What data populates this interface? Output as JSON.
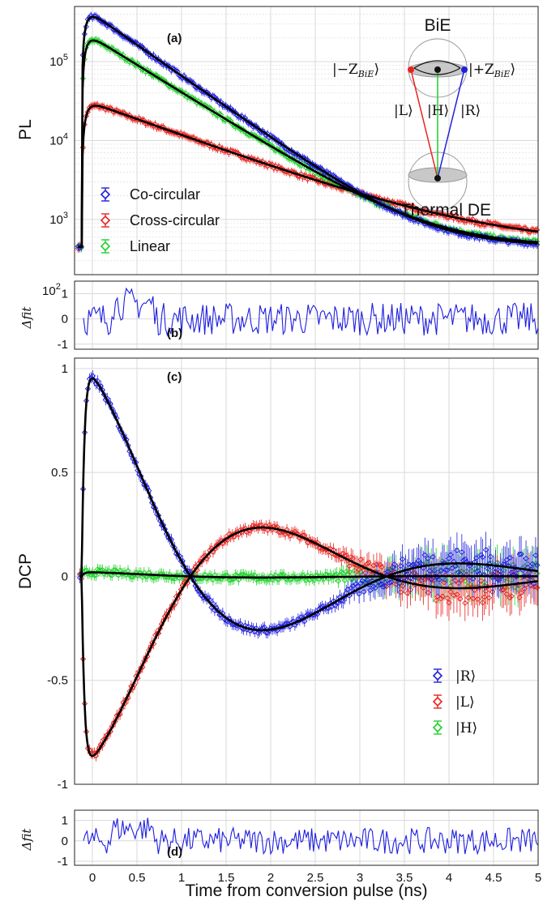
{
  "colors": {
    "blue": "#1f1fe0",
    "red": "#e8231f",
    "green": "#1fd12a",
    "fit": "#000000",
    "grid": "#d9d9d9"
  },
  "xlabel": "Time from conversion pulse (ns)",
  "x_ticks": [
    "0",
    "0.5",
    "1",
    "1.5",
    "2",
    "2.5",
    "3",
    "3.5",
    "4",
    "4.5",
    "5"
  ],
  "chart_data": [
    {
      "panel": "(a)",
      "type": "scatter",
      "yscale": "log",
      "ylabel": "PL",
      "xlim": [
        -0.2,
        5
      ],
      "ylim": [
        200,
        500000
      ],
      "y_ticks": [
        {
          "base": "10",
          "exp": "3",
          "v": 1000
        },
        {
          "base": "10",
          "exp": "4",
          "v": 10000
        },
        {
          "base": "10",
          "exp": "5",
          "v": 100000
        }
      ],
      "grid": true,
      "legend_position": "bottom-left",
      "legend": [
        "Co-circular",
        "Cross-circular",
        "Linear"
      ],
      "series": [
        {
          "name": "Co-circular",
          "color": "blue",
          "onset": -0.12,
          "rise": 0.05,
          "background": 450,
          "amplitude": 420000,
          "decay_ns": 0.55
        },
        {
          "name": "Cross-circular",
          "color": "red",
          "onset": -0.12,
          "rise": 0.05,
          "background": 450,
          "amplitude": 30000,
          "decay_ns": 1.05
        },
        {
          "name": "Linear",
          "color": "green",
          "onset": -0.12,
          "rise": 0.05,
          "background": 450,
          "amplitude": 210000,
          "decay_ns": 0.62
        }
      ],
      "inset": {
        "top_label": "BiE",
        "bottom_label": "Thermal DE",
        "left_state": "|−Z",
        "left_sub": "BiE",
        "left_close": "⟩",
        "right_state": "|+Z",
        "right_sub": "BiE",
        "right_close": "⟩",
        "kets": [
          "|L⟩",
          "|H⟩",
          "|R⟩"
        ]
      }
    },
    {
      "panel": "(b)",
      "type": "line",
      "ylabel": "Δfit",
      "ylim": [
        -1.2,
        1.5
      ],
      "y_ticks": [
        "1",
        "0",
        "-1"
      ],
      "top_label": "10",
      "top_label_exp": "2",
      "color": "blue"
    },
    {
      "panel": "(c)",
      "type": "scatter",
      "ylabel": "DCP",
      "xlim": [
        -0.2,
        5
      ],
      "ylim": [
        -1,
        1.05
      ],
      "y_ticks": [
        "1",
        "0.5",
        "0",
        "-0.5",
        "-1"
      ],
      "grid": true,
      "legend_position": "bottom-right",
      "legend": [
        "|R⟩",
        "|L⟩",
        "|H⟩"
      ],
      "series": [
        {
          "name": "|R⟩",
          "color": "blue",
          "peak": 0.97,
          "trough": -0.43,
          "trough_at": 2.1
        },
        {
          "name": "|L⟩",
          "color": "red",
          "peak": -0.88,
          "trough": 0.43,
          "trough_at": 2.1
        },
        {
          "name": "|H⟩",
          "color": "green",
          "peak": 0.02,
          "trough": 0.0,
          "trough_at": 2.1
        }
      ]
    },
    {
      "panel": "(d)",
      "type": "line",
      "ylabel": "Δfit",
      "ylim": [
        -1.2,
        1.5
      ],
      "y_ticks": [
        "1",
        "0",
        "-1"
      ],
      "color": "blue"
    }
  ]
}
